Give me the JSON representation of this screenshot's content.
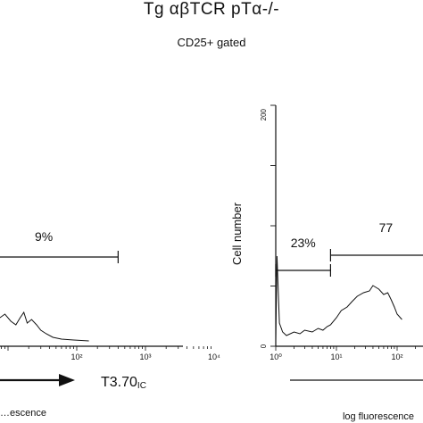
{
  "figure": {
    "title": "Tg αβTCR pTα-/-",
    "subtitle": "CD25+ gated"
  },
  "chart_data": [
    {
      "type": "area",
      "panel": "left",
      "xscale": "log",
      "xlim": [
        1,
        10000
      ],
      "xtick_labels": [
        "10²",
        "10³",
        "10⁴"
      ],
      "xlabel": "…escence",
      "ylabel": "",
      "marker_label": "T3.70IC",
      "marker_label_main": "T3.70",
      "marker_label_sub": "IC",
      "gates": [
        {
          "label": "9%",
          "x_range": [
            5,
            400
          ]
        }
      ],
      "x": [
        1,
        3,
        5,
        7,
        9,
        11,
        13,
        15,
        17,
        19,
        22,
        26,
        30,
        36,
        45,
        60,
        90,
        150
      ],
      "y": [
        20,
        22,
        28,
        24,
        30,
        22,
        18,
        26,
        32,
        20,
        24,
        18,
        12,
        8,
        4,
        2,
        1,
        0
      ]
    },
    {
      "type": "area",
      "panel": "right",
      "xscale": "log",
      "xlim": [
        1,
        10000
      ],
      "ylim": [
        0,
        200
      ],
      "ytick_labels": [
        "0",
        "200"
      ],
      "xtick_labels": [
        "10⁰",
        "10¹",
        "10²"
      ],
      "xlabel": "log fluorescence",
      "ylabel": "Cell number",
      "gates": [
        {
          "label": "23%",
          "x_range": [
            1,
            8
          ]
        },
        {
          "label": "77",
          "x_range": [
            8,
            1000
          ]
        }
      ],
      "x": [
        1.0,
        1.05,
        1.15,
        1.3,
        1.5,
        2,
        2.5,
        3,
        4,
        5,
        6,
        7,
        8,
        10,
        12,
        15,
        18,
        22,
        28,
        35,
        40,
        50,
        60,
        70,
        80,
        90,
        100,
        120
      ],
      "y": [
        0,
        95,
        20,
        10,
        6,
        10,
        8,
        12,
        10,
        14,
        12,
        16,
        18,
        26,
        34,
        38,
        44,
        50,
        54,
        56,
        62,
        58,
        52,
        54,
        46,
        38,
        30,
        24
      ]
    }
  ]
}
